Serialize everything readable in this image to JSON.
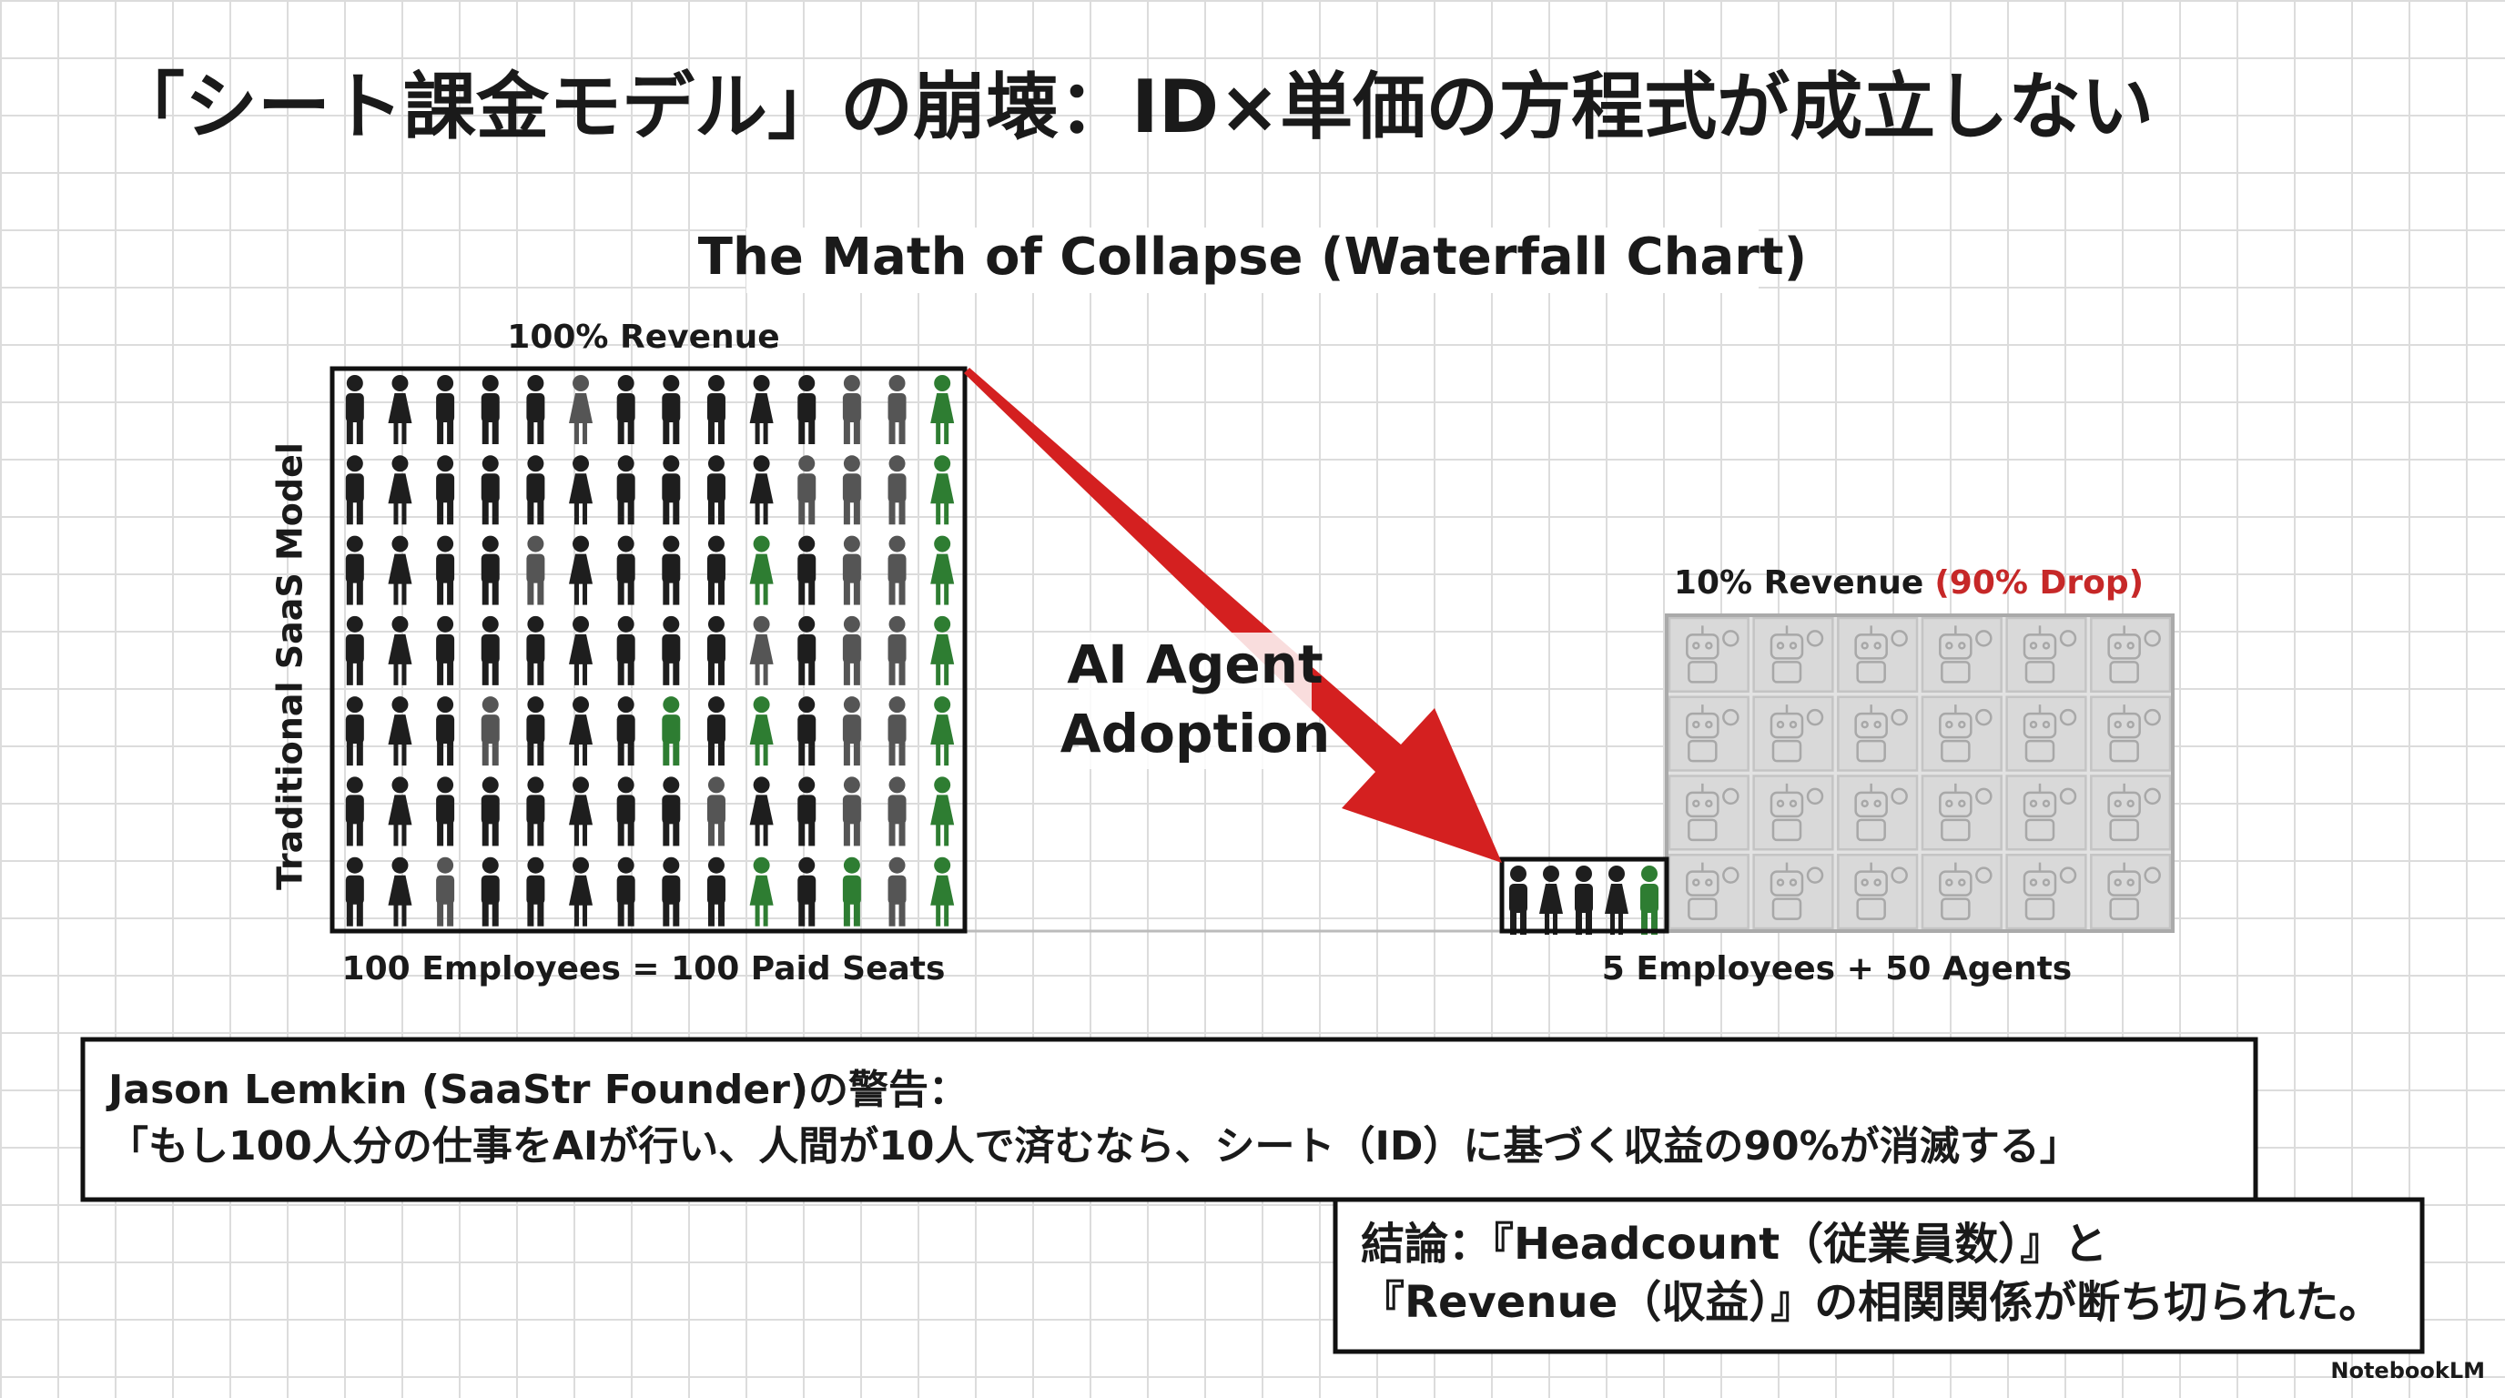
{
  "title": "「シート課金モデル」の崩壊：ID×単価の方程式が成立しない",
  "chart": {
    "title": "The Math of Collapse (Waterfall Chart)",
    "left": {
      "top_label": "100% Revenue",
      "axis_label": "Traditional SaaS Model",
      "bottom_label": "100 Employees = 100 Paid Seats"
    },
    "arrow_label": [
      "AI Agent",
      "Adoption"
    ],
    "right": {
      "top_label": "10% Revenue",
      "drop_label": "(90% Drop)",
      "bottom_label": "5 Employees + 50 Agents"
    }
  },
  "quote": {
    "lines": [
      "Jason Lemkin (SaaStr Founder)の警告：",
      "「もし100人分の仕事をAIが行い、人間が10人で済むなら、シート（ID）に基づく収益の90%が消滅する」"
    ]
  },
  "conclusion": {
    "lines": [
      "結論：『Headcount（従業員数）』と",
      "『Revenue（収益）』の相関関係が断ち切られた。"
    ]
  },
  "footer": {
    "brand": "NotebookLM"
  }
}
